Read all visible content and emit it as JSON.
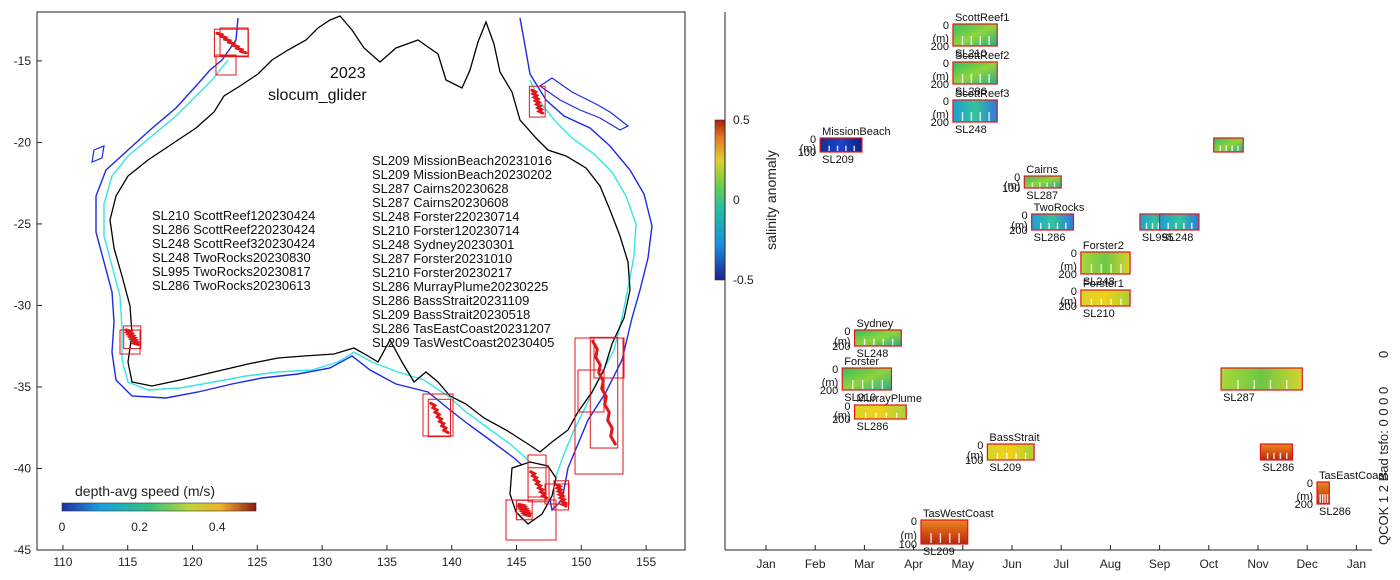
{
  "map": {
    "year": "2023",
    "platform": "slocum_glider",
    "xticks": [
      110,
      115,
      120,
      125,
      130,
      135,
      140,
      145,
      150,
      155
    ],
    "yticks": [
      -15,
      -20,
      -25,
      -30,
      -35,
      -40,
      -45
    ],
    "xlim": [
      108,
      158
    ],
    "ylim": [
      -45,
      -12
    ],
    "west_deployments": [
      "SL210 ScottReef120230424",
      "SL286 ScottReef220230424",
      "SL248 ScottReef320230424",
      "SL248 TwoRocks20230830",
      "SL995 TwoRocks20230817",
      "SL286 TwoRocks20230613"
    ],
    "east_deployments": [
      "SL209 MissionBeach20231016",
      "SL209 MissionBeach20230202",
      "SL287 Cairns20230628",
      "SL287 Cairns20230608",
      "SL248 Forster220230714",
      "SL210 Forster120230714",
      "SL248 Sydney20230301",
      "SL287 Forster20231010",
      "SL210 Forster20230217",
      "SL286 MurrayPlume20230225",
      "SL286 BassStrait20231109",
      "SL209 BassStrait20230518",
      "SL286 TasEastCoast20231207",
      "SL209 TasWestCoast20230405"
    ],
    "colorbar": {
      "label": "depth-avg speed (m/s)",
      "ticks": [
        "0",
        "0.2",
        "0.4"
      ],
      "range": [
        0,
        0.5
      ]
    }
  },
  "anomaly_colorbar": {
    "label": "salinity anomaly",
    "ticks": [
      "0.5",
      "0",
      "-0.5"
    ],
    "range": [
      -0.5,
      0.5
    ]
  },
  "timeline": {
    "months": [
      "Jan",
      "Feb",
      "Mar",
      "Apr",
      "May",
      "Jun",
      "Jul",
      "Aug",
      "Sep",
      "Oct",
      "Nov",
      "Dec",
      "Jan"
    ],
    "qc_label": "QCOK 1   2 Bad tsfo: 0 0 0 0",
    "qc_extra": "0"
  },
  "chart_data": [
    {
      "type": "scatter",
      "title": "2023",
      "subtitle": "slocum_glider",
      "xlabel": "",
      "ylabel": "",
      "xlim": [
        108,
        158
      ],
      "ylim": [
        -45,
        -12
      ],
      "legend": "bottom-left",
      "colorbar_label": "depth-avg speed (m/s)",
      "regions": [
        {
          "name": "ScottReef",
          "lon": [
            122,
            124
          ],
          "lat": [
            -13.3,
            -14.5
          ]
        },
        {
          "name": "TwoRocks",
          "lon": [
            115,
            115.7
          ],
          "lat": [
            -31.5,
            -32.4
          ]
        },
        {
          "name": "Cairns",
          "lon": [
            146.3,
            146.9
          ],
          "lat": [
            -16.8,
            -18.2
          ]
        },
        {
          "name": "MurrayPlume",
          "lon": [
            138.5,
            139.6
          ],
          "lat": [
            -36,
            -37.8
          ]
        },
        {
          "name": "Forster",
          "lon": [
            151,
            152.5
          ],
          "lat": [
            -32.2,
            -38.5
          ]
        },
        {
          "name": "BassStrait",
          "lon": [
            146.2,
            147.2
          ],
          "lat": [
            -40.2,
            -41.8
          ]
        },
        {
          "name": "TasEastCoast",
          "lon": [
            148.2,
            148.7
          ],
          "lat": [
            -41,
            -42.3
          ]
        },
        {
          "name": "TasWestCoast",
          "lon": [
            145.3,
            145.9
          ],
          "lat": [
            -42.2,
            -42.9
          ]
        }
      ]
    },
    {
      "type": "heatmap",
      "xlabel": "",
      "ylabel": "",
      "x": [
        "Jan",
        "Feb",
        "Mar",
        "Apr",
        "May",
        "Jun",
        "Jul",
        "Aug",
        "Sep",
        "Oct",
        "Nov",
        "Dec",
        "Jan"
      ],
      "colorbar_label": "salinity anomaly",
      "colorbar_range": [
        -0.5,
        0.5
      ],
      "series": [
        {
          "name": "ScottReef1",
          "glider": "SL210",
          "start_month": 4.8,
          "end_month": 5.7,
          "row": 1,
          "depth_label": "200",
          "tone": "green"
        },
        {
          "name": "ScottReef2",
          "glider": "SL286",
          "start_month": 4.8,
          "end_month": 5.7,
          "row": 2,
          "depth_label": "200",
          "tone": "green"
        },
        {
          "name": "ScottReef3",
          "glider": "SL248",
          "start_month": 4.8,
          "end_month": 5.7,
          "row": 3,
          "depth_label": "200",
          "tone": "cyan"
        },
        {
          "name": "MissionBeach",
          "glider": "SL209",
          "start_month": 2.1,
          "end_month": 2.95,
          "row": 4,
          "depth_label": "100",
          "tone": "blue"
        },
        {
          "name": "",
          "glider": "",
          "start_month": 10.1,
          "end_month": 10.7,
          "row": 4,
          "depth_label": "",
          "tone": "green"
        },
        {
          "name": "Cairns",
          "glider": "SL287",
          "start_month": 6.25,
          "end_month": 7.0,
          "row": 5,
          "depth_label": "100",
          "tone": "green"
        },
        {
          "name": "TwoRocks",
          "glider": "SL286",
          "start_month": 6.4,
          "end_month": 7.25,
          "row": 6,
          "depth_label": "200",
          "tone": "cyan"
        },
        {
          "name": "",
          "glider": "SL995",
          "start_month": 8.6,
          "end_month": 9.2,
          "row": 6,
          "depth_label": "",
          "tone": "cyan"
        },
        {
          "name": "",
          "glider": "SL248",
          "start_month": 9.0,
          "end_month": 9.8,
          "row": 6,
          "depth_label": "",
          "tone": "cyan"
        },
        {
          "name": "Forster2",
          "glider": "SL248",
          "start_month": 7.4,
          "end_month": 8.4,
          "row": 7,
          "depth_label": "200",
          "tone": "yellowgreen"
        },
        {
          "name": "Forster1",
          "glider": "SL210",
          "start_month": 7.4,
          "end_month": 8.4,
          "row": 8,
          "depth_label": "200",
          "tone": "yellow"
        },
        {
          "name": "Sydney",
          "glider": "SL248",
          "start_month": 2.8,
          "end_month": 3.75,
          "row": 9,
          "depth_label": "200",
          "tone": "green"
        },
        {
          "name": "Forster",
          "glider": "SL210",
          "start_month": 2.55,
          "end_month": 3.55,
          "row": 10,
          "depth_label": "200",
          "tone": "green"
        },
        {
          "name": "",
          "glider": "SL287",
          "start_month": 10.25,
          "end_month": 11.9,
          "row": 10,
          "depth_label": "",
          "tone": "yellowgreen"
        },
        {
          "name": "MurrayPlume",
          "glider": "SL286",
          "start_month": 2.8,
          "end_month": 3.85,
          "row": 11,
          "depth_label": "200",
          "tone": "yellow"
        },
        {
          "name": "BassStrait",
          "glider": "SL209",
          "start_month": 5.5,
          "end_month": 6.45,
          "row": 12,
          "depth_label": "100",
          "tone": "yellow"
        },
        {
          "name": "",
          "glider": "SL286",
          "start_month": 11.05,
          "end_month": 11.7,
          "row": 12,
          "depth_label": "",
          "tone": "orange"
        },
        {
          "name": "TasEastCoast",
          "glider": "SL286",
          "start_month": 12.2,
          "end_month": 12.45,
          "row": 13,
          "depth_label": "200",
          "tone": "orange"
        },
        {
          "name": "TasWestCoast",
          "glider": "SL209",
          "start_month": 4.15,
          "end_month": 5.1,
          "row": 14,
          "depth_label": "100",
          "tone": "orange"
        }
      ]
    }
  ],
  "colors": {
    "track_red": "#e0161b",
    "coast": "#000000",
    "isobath_cyan": "#35e4ea",
    "isobath_blue": "#1a2ae6"
  }
}
